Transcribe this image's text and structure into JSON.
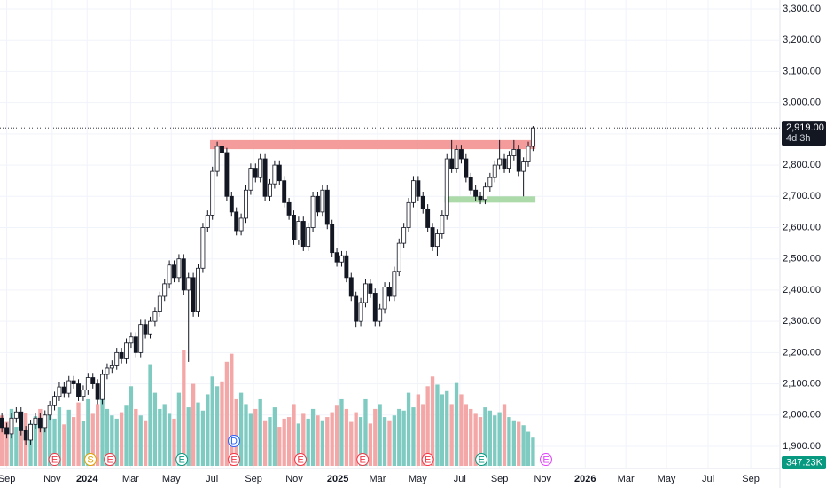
{
  "chart_data": {
    "type": "candlestick",
    "open": [
      1990,
      1960,
      1940,
      1990,
      2010,
      1950,
      1920,
      1970,
      1990,
      1960,
      2000,
      2030,
      2060,
      2090,
      2070,
      2110,
      2100,
      2060,
      2080,
      2120,
      2100,
      2050,
      2130,
      2150,
      2160,
      2200,
      2180,
      2230,
      2250,
      2200,
      2290,
      2260,
      2300,
      2330,
      2380,
      2420,
      2480,
      2440,
      2500,
      2400,
      2440,
      2330,
      2470,
      2600,
      2640,
      2780,
      2860,
      2840,
      2700,
      2650,
      2590,
      2630,
      2720,
      2790,
      2760,
      2820,
      2700,
      2740,
      2800,
      2750,
      2680,
      2640,
      2560,
      2620,
      2540,
      2600,
      2700,
      2650,
      2720,
      2610,
      2520,
      2490,
      2510,
      2440,
      2380,
      2300,
      2360,
      2420,
      2390,
      2300,
      2340,
      2410,
      2380,
      2460,
      2550,
      2600,
      2680,
      2750,
      2700,
      2660,
      2600,
      2540,
      2580,
      2640,
      2820,
      2790,
      2850,
      2820,
      2760,
      2720,
      2700,
      2690,
      2730,
      2760,
      2800,
      2820,
      2790,
      2830,
      2850,
      2780,
      2810,
      2860
    ],
    "high": [
      2005,
      1975,
      2005,
      2025,
      2025,
      1965,
      1985,
      2005,
      2005,
      2015,
      2045,
      2075,
      2105,
      2105,
      2125,
      2125,
      2115,
      2095,
      2135,
      2135,
      2115,
      2145,
      2165,
      2175,
      2215,
      2215,
      2245,
      2265,
      2265,
      2305,
      2305,
      2315,
      2345,
      2395,
      2435,
      2495,
      2495,
      2515,
      2515,
      2455,
      2455,
      2485,
      2615,
      2655,
      2795,
      2875,
      2875,
      2855,
      2715,
      2665,
      2645,
      2735,
      2805,
      2805,
      2835,
      2835,
      2755,
      2815,
      2815,
      2765,
      2695,
      2655,
      2635,
      2635,
      2615,
      2715,
      2715,
      2735,
      2735,
      2625,
      2535,
      2525,
      2525,
      2455,
      2395,
      2375,
      2435,
      2435,
      2405,
      2355,
      2425,
      2425,
      2475,
      2565,
      2615,
      2695,
      2765,
      2765,
      2715,
      2675,
      2615,
      2595,
      2655,
      2835,
      2880,
      2865,
      2865,
      2835,
      2775,
      2735,
      2715,
      2745,
      2775,
      2815,
      2880,
      2835,
      2845,
      2880,
      2865,
      2825,
      2875,
      2925
    ],
    "low": [
      1945,
      1925,
      1925,
      1975,
      1935,
      1905,
      1905,
      1955,
      1945,
      1945,
      1985,
      2015,
      2045,
      2055,
      2055,
      2085,
      2045,
      2045,
      2065,
      2085,
      2035,
      2035,
      2115,
      2135,
      2145,
      2165,
      2165,
      2215,
      2185,
      2185,
      2245,
      2245,
      2285,
      2315,
      2365,
      2405,
      2425,
      2425,
      2385,
      2170,
      2315,
      2315,
      2455,
      2585,
      2625,
      2765,
      2825,
      2685,
      2635,
      2575,
      2575,
      2615,
      2705,
      2745,
      2745,
      2685,
      2685,
      2725,
      2735,
      2665,
      2625,
      2545,
      2545,
      2525,
      2525,
      2585,
      2635,
      2635,
      2595,
      2505,
      2475,
      2475,
      2425,
      2365,
      2280,
      2285,
      2345,
      2375,
      2285,
      2285,
      2325,
      2365,
      2365,
      2445,
      2535,
      2585,
      2665,
      2685,
      2645,
      2585,
      2525,
      2510,
      2565,
      2625,
      2775,
      2775,
      2805,
      2745,
      2705,
      2685,
      2675,
      2675,
      2715,
      2745,
      2785,
      2775,
      2775,
      2815,
      2765,
      2700,
      2795,
      2845
    ],
    "close": [
      1960,
      1940,
      1990,
      2010,
      1950,
      1920,
      1970,
      1990,
      1960,
      2000,
      2030,
      2060,
      2090,
      2070,
      2110,
      2100,
      2060,
      2080,
      2120,
      2100,
      2050,
      2130,
      2150,
      2160,
      2200,
      2180,
      2230,
      2250,
      2200,
      2290,
      2260,
      2300,
      2330,
      2380,
      2420,
      2480,
      2440,
      2500,
      2400,
      2440,
      2330,
      2470,
      2600,
      2640,
      2780,
      2860,
      2840,
      2700,
      2650,
      2590,
      2630,
      2720,
      2790,
      2760,
      2820,
      2700,
      2740,
      2800,
      2750,
      2680,
      2640,
      2560,
      2620,
      2540,
      2600,
      2700,
      2650,
      2720,
      2610,
      2520,
      2490,
      2510,
      2440,
      2380,
      2300,
      2360,
      2420,
      2390,
      2300,
      2340,
      2410,
      2380,
      2460,
      2550,
      2600,
      2680,
      2750,
      2700,
      2660,
      2600,
      2540,
      2580,
      2640,
      2820,
      2790,
      2850,
      2820,
      2760,
      2720,
      2700,
      2690,
      2730,
      2760,
      2800,
      2820,
      2790,
      2830,
      2850,
      2780,
      2810,
      2860,
      2919
    ],
    "volume": [
      620,
      540,
      700,
      480,
      590,
      650,
      520,
      610,
      700,
      560,
      640,
      580,
      720,
      510,
      690,
      600,
      780,
      550,
      820,
      640,
      760,
      890,
      700,
      620,
      580,
      660,
      740,
      980,
      700,
      620,
      560,
      1250,
      900,
      700,
      760,
      640,
      580,
      900,
      1420,
      720,
      1010,
      780,
      680,
      880,
      1100,
      980,
      1040,
      1280,
      1380,
      820,
      900,
      760,
      640,
      700,
      820,
      560,
      600,
      720,
      480,
      580,
      600,
      760,
      520,
      640,
      580,
      700,
      620,
      560,
      600,
      660,
      740,
      820,
      700,
      540,
      660,
      600,
      820,
      520,
      700,
      760,
      600,
      560,
      620,
      700,
      680,
      900,
      720,
      880,
      760,
      980,
      1100,
      1000,
      880,
      920,
      760,
      1020,
      880,
      760,
      700,
      640,
      600,
      720,
      680,
      620,
      660,
      760,
      600,
      560,
      540,
      500,
      420,
      347.23
    ],
    "up_color": "#ffffff",
    "down_color": "#131722",
    "volume_up_color": "#7fcbc1",
    "volume_down_color": "#f4a7a7",
    "xlim": [
      -0.4,
      162.6
    ],
    "xticks": [
      {
        "value": 1,
        "label": "Sep"
      },
      {
        "value": 10.5,
        "label": "Nov"
      },
      {
        "value": 17.8,
        "label": "2024"
      },
      {
        "value": 26.9,
        "label": "Mar"
      },
      {
        "value": 35.4,
        "label": "May"
      },
      {
        "value": 43.9,
        "label": "Jul"
      },
      {
        "value": 52.6,
        "label": "Sep"
      },
      {
        "value": 61.1,
        "label": "Nov"
      },
      {
        "value": 70.2,
        "label": "2025"
      },
      {
        "value": 78.5,
        "label": "Mar"
      },
      {
        "value": 86.9,
        "label": "May"
      },
      {
        "value": 95.7,
        "label": "Jul"
      },
      {
        "value": 104,
        "label": "Sep"
      },
      {
        "value": 113,
        "label": "Nov"
      },
      {
        "value": 121.9,
        "label": "2026"
      },
      {
        "value": 130.4,
        "label": "Mar"
      },
      {
        "value": 138.9,
        "label": "May"
      },
      {
        "value": 147.6,
        "label": "Jul"
      },
      {
        "value": 156.5,
        "label": "Sep"
      }
    ],
    "ylim": [
      1900,
      3300
    ],
    "yticks": [
      {
        "value": 1900,
        "label": "1,900.00"
      },
      {
        "value": 2000,
        "label": "2,000.00"
      },
      {
        "value": 2100,
        "label": "2,100.00"
      },
      {
        "value": 2200,
        "label": "2,200.00"
      },
      {
        "value": 2300,
        "label": "2,300.00"
      },
      {
        "value": 2400,
        "label": "2,400.00"
      },
      {
        "value": 2500,
        "label": "2,500.00"
      },
      {
        "value": 2600,
        "label": "2,600.00"
      },
      {
        "value": 2700,
        "label": "2,700.00"
      },
      {
        "value": 2800,
        "label": "2,800.00"
      },
      {
        "value": 2900,
        "label": "2,900.00"
      },
      {
        "value": 3000,
        "label": "3,000.00"
      },
      {
        "value": 3100,
        "label": "3,100.00"
      },
      {
        "value": 3200,
        "label": "3,200.00"
      },
      {
        "value": 3300,
        "label": "3,300.00"
      }
    ],
    "grid": true,
    "last_price_label": "2,919.00",
    "countdown": "4d 3h",
    "volume_label": "347.23K",
    "zones": [
      {
        "low": 2851,
        "high": 2880,
        "from": 44,
        "to": 111,
        "color": "#f28b8b"
      },
      {
        "low": 2680,
        "high": 2700,
        "from": 93,
        "to": 111,
        "color": "#9fd39a"
      }
    ],
    "events": [
      {
        "label": "E",
        "x": 11,
        "color": "#f23645"
      },
      {
        "label": "S",
        "x": 18.5,
        "color": "#e0a100"
      },
      {
        "label": "E",
        "x": 22.6,
        "color": "#f23645"
      },
      {
        "label": "E",
        "x": 37.6,
        "color": "#089981"
      },
      {
        "label": "E",
        "x": 48.5,
        "color": "#f23645"
      },
      {
        "label": "D",
        "x": 48.5,
        "color": "#2962ff"
      },
      {
        "label": "E",
        "x": 62.4,
        "color": "#f23645"
      },
      {
        "label": "E",
        "x": 75.4,
        "color": "#f23645"
      },
      {
        "label": "E",
        "x": 89,
        "color": "#f23645"
      },
      {
        "label": "E",
        "x": 100.2,
        "color": "#089981"
      },
      {
        "label": "E",
        "x": 113.7,
        "color": "#e040fb"
      }
    ]
  }
}
